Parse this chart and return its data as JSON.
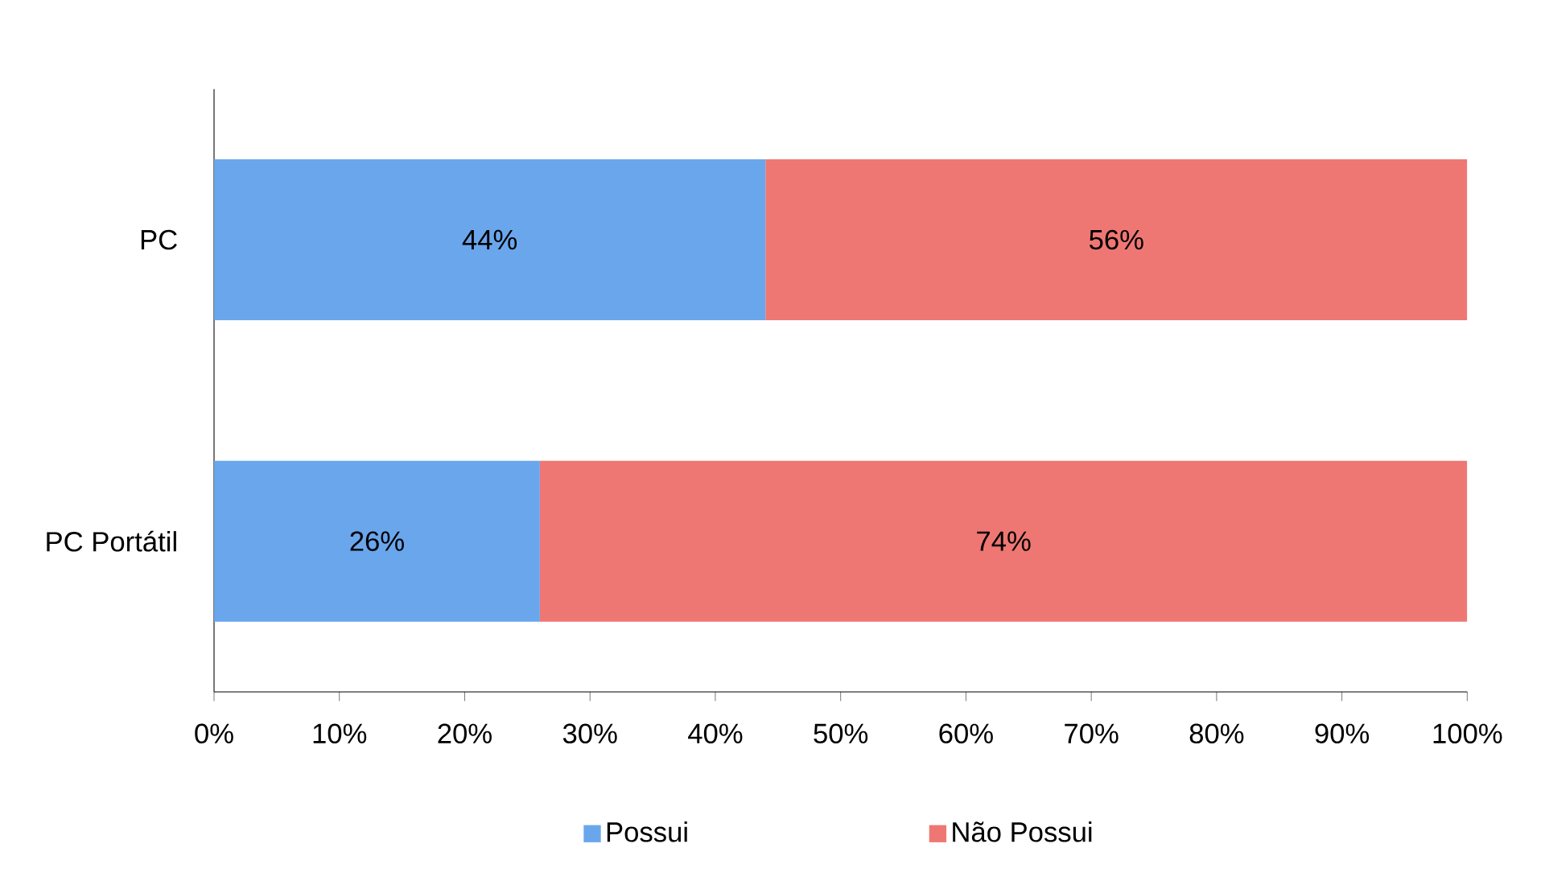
{
  "chart_data": {
    "type": "bar",
    "orientation": "horizontal",
    "stacked": true,
    "categories": [
      "PC",
      "PC Portátil"
    ],
    "series": [
      {
        "name": "Possui",
        "color": "#6aa6ec",
        "values": [
          44,
          26
        ],
        "value_labels": [
          "44%",
          "26%"
        ]
      },
      {
        "name": "Não Possui",
        "color": "#ef7773",
        "values": [
          56,
          74
        ],
        "value_labels": [
          "56%",
          "74%"
        ]
      }
    ],
    "xlim": [
      0,
      100
    ],
    "xticks": [
      {
        "value": 0,
        "label": "0%"
      },
      {
        "value": 10,
        "label": "10%"
      },
      {
        "value": 20,
        "label": "20%"
      },
      {
        "value": 30,
        "label": "30%"
      },
      {
        "value": 40,
        "label": "40%"
      },
      {
        "value": 50,
        "label": "50%"
      },
      {
        "value": 60,
        "label": "60%"
      },
      {
        "value": 70,
        "label": "70%"
      },
      {
        "value": 80,
        "label": "80%"
      },
      {
        "value": 90,
        "label": "90%"
      },
      {
        "value": 100,
        "label": "100%"
      }
    ],
    "legend": "bottom"
  }
}
